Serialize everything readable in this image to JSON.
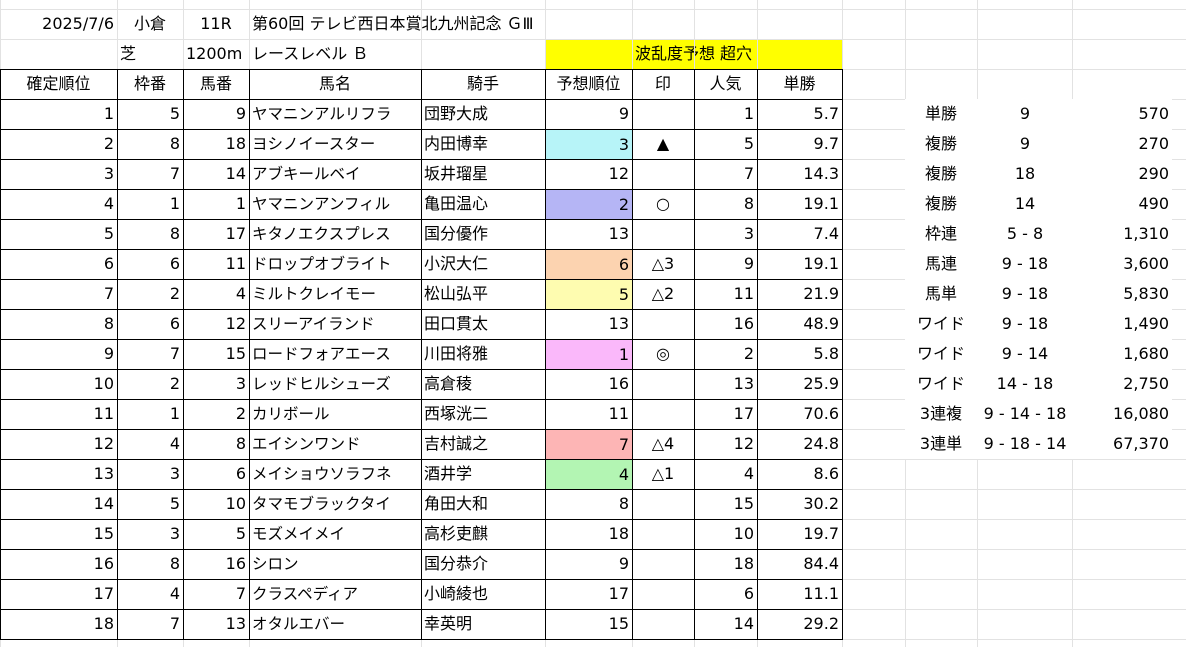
{
  "header": {
    "date": "2025/7/6",
    "venue": "小倉",
    "race_no": "11R",
    "race_name": "第60回 テレビ西日本賞北九州記念 ＧⅢ",
    "surface": "芝",
    "distance": "1200m",
    "race_level": "レースレベル Ｂ",
    "forecast_label": "波乱度予想 超穴"
  },
  "columns": [
    "確定順位",
    "枠番",
    "馬番",
    "馬名",
    "騎手",
    "予想順位",
    "印",
    "人気",
    "単勝"
  ],
  "rows": [
    {
      "rank": "1",
      "waku": "5",
      "umaban": "9",
      "horse": "ヤマニンアルリフラ",
      "jockey": "団野大成",
      "pred": "9",
      "mark": "",
      "pop": "1",
      "odds": "5.7",
      "pred_color": ""
    },
    {
      "rank": "2",
      "waku": "8",
      "umaban": "18",
      "horse": "ヨシノイースター",
      "jockey": "内田博幸",
      "pred": "3",
      "mark": "▲",
      "pop": "5",
      "odds": "9.7",
      "pred_color": "#b7f4f8"
    },
    {
      "rank": "3",
      "waku": "7",
      "umaban": "14",
      "horse": "アブキールベイ",
      "jockey": "坂井瑠星",
      "pred": "12",
      "mark": "",
      "pop": "7",
      "odds": "14.3",
      "pred_color": ""
    },
    {
      "rank": "4",
      "waku": "1",
      "umaban": "1",
      "horse": "ヤマニンアンフィル",
      "jockey": "亀田温心",
      "pred": "2",
      "mark": "○",
      "pop": "8",
      "odds": "19.1",
      "pred_color": "#b5b5f5"
    },
    {
      "rank": "5",
      "waku": "8",
      "umaban": "17",
      "horse": "キタノエクスプレス",
      "jockey": "国分優作",
      "pred": "13",
      "mark": "",
      "pop": "3",
      "odds": "7.4",
      "pred_color": ""
    },
    {
      "rank": "6",
      "waku": "6",
      "umaban": "11",
      "horse": "ドロップオブライト",
      "jockey": "小沢大仁",
      "pred": "6",
      "mark": "△3",
      "pop": "9",
      "odds": "19.1",
      "pred_color": "#fcd3b0"
    },
    {
      "rank": "7",
      "waku": "2",
      "umaban": "4",
      "horse": "ミルトクレイモー",
      "jockey": "松山弘平",
      "pred": "5",
      "mark": "△2",
      "pop": "11",
      "odds": "21.9",
      "pred_color": "#fefcb0"
    },
    {
      "rank": "8",
      "waku": "6",
      "umaban": "12",
      "horse": "スリーアイランド",
      "jockey": "田口貫太",
      "pred": "13",
      "mark": "",
      "pop": "16",
      "odds": "48.9",
      "pred_color": ""
    },
    {
      "rank": "9",
      "waku": "7",
      "umaban": "15",
      "horse": "ロードフォアエース",
      "jockey": "川田将雅",
      "pred": "1",
      "mark": "◎",
      "pop": "2",
      "odds": "5.8",
      "pred_color": "#fab8fa"
    },
    {
      "rank": "10",
      "waku": "2",
      "umaban": "3",
      "horse": "レッドヒルシューズ",
      "jockey": "高倉稜",
      "pred": "16",
      "mark": "",
      "pop": "13",
      "odds": "25.9",
      "pred_color": ""
    },
    {
      "rank": "11",
      "waku": "1",
      "umaban": "2",
      "horse": "カリボール",
      "jockey": "西塚洸二",
      "pred": "11",
      "mark": "",
      "pop": "17",
      "odds": "70.6",
      "pred_color": ""
    },
    {
      "rank": "12",
      "waku": "4",
      "umaban": "8",
      "horse": "エイシンワンド",
      "jockey": "吉村誠之",
      "pred": "7",
      "mark": "△4",
      "pop": "12",
      "odds": "24.8",
      "pred_color": "#fdb5b5"
    },
    {
      "rank": "13",
      "waku": "3",
      "umaban": "6",
      "horse": "メイショウソラフネ",
      "jockey": "酒井学",
      "pred": "4",
      "mark": "△1",
      "pop": "4",
      "odds": "8.6",
      "pred_color": "#b3f5b3"
    },
    {
      "rank": "14",
      "waku": "5",
      "umaban": "10",
      "horse": "タマモブラックタイ",
      "jockey": "角田大和",
      "pred": "8",
      "mark": "",
      "pop": "15",
      "odds": "30.2",
      "pred_color": ""
    },
    {
      "rank": "15",
      "waku": "3",
      "umaban": "5",
      "horse": "モズメイメイ",
      "jockey": "高杉吏麒",
      "pred": "18",
      "mark": "",
      "pop": "10",
      "odds": "19.7",
      "pred_color": ""
    },
    {
      "rank": "16",
      "waku": "8",
      "umaban": "16",
      "horse": "シロン",
      "jockey": "国分恭介",
      "pred": "9",
      "mark": "",
      "pop": "18",
      "odds": "84.4",
      "pred_color": ""
    },
    {
      "rank": "17",
      "waku": "4",
      "umaban": "7",
      "horse": "クラスペディア",
      "jockey": "小崎綾也",
      "pred": "17",
      "mark": "",
      "pop": "6",
      "odds": "11.1",
      "pred_color": ""
    },
    {
      "rank": "18",
      "waku": "7",
      "umaban": "13",
      "horse": "オタルエバー",
      "jockey": "幸英明",
      "pred": "15",
      "mark": "",
      "pop": "14",
      "odds": "29.2",
      "pred_color": ""
    }
  ],
  "payouts": [
    {
      "type": "単勝",
      "combo": "9",
      "amount": "570"
    },
    {
      "type": "複勝",
      "combo": "9",
      "amount": "270"
    },
    {
      "type": "複勝",
      "combo": "18",
      "amount": "290"
    },
    {
      "type": "複勝",
      "combo": "14",
      "amount": "490"
    },
    {
      "type": "枠連",
      "combo": "5 - 8",
      "amount": "1,310"
    },
    {
      "type": "馬連",
      "combo": "9 - 18",
      "amount": "3,600"
    },
    {
      "type": "馬単",
      "combo": "9 - 18",
      "amount": "5,830"
    },
    {
      "type": "ワイド",
      "combo": "9 - 18",
      "amount": "1,490"
    },
    {
      "type": "ワイド",
      "combo": "9 - 14",
      "amount": "1,680"
    },
    {
      "type": "ワイド",
      "combo": "14 - 18",
      "amount": "2,750"
    },
    {
      "type": "3連複",
      "combo": "9 - 14 - 18",
      "amount": "16,080"
    },
    {
      "type": "3連単",
      "combo": "9 - 18 - 14",
      "amount": "67,370"
    }
  ]
}
